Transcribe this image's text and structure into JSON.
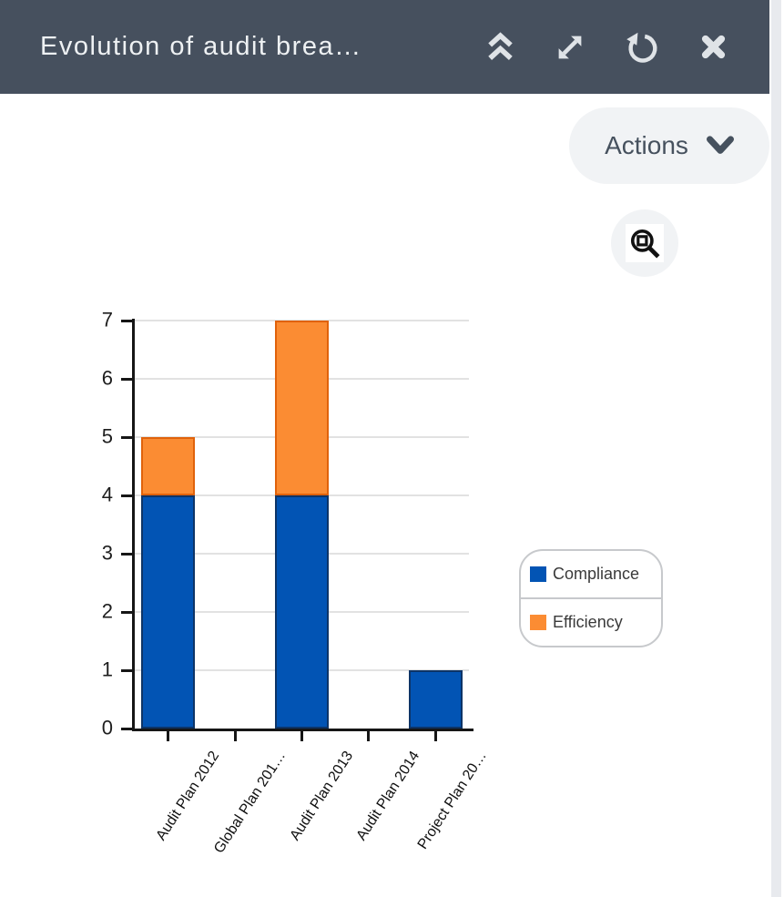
{
  "header": {
    "title": "Evolution of audit brea…",
    "icon_names": [
      "double-chevron-up",
      "expand-diagonal",
      "refresh",
      "close"
    ]
  },
  "toolbar": {
    "actions_label": "Actions",
    "actions_icon": "chevron-down",
    "zoom_icon": "magnifier-with-square"
  },
  "colors": {
    "header_bg": "#46505e",
    "header_icon": "#dfe3e7",
    "button_bg": "#f1f3f5",
    "button_text": "#46515e",
    "scrollbar_track": "#e8eaee",
    "axis": "#161616",
    "gridline": "#e2e2e2",
    "legend_border": "#c7c9cc"
  },
  "chart_data": {
    "type": "bar",
    "stacked": true,
    "title": "Evolution of audit brea…",
    "categories": [
      "Audit Plan 2012",
      "Global Plan 201…",
      "Audit Plan 2013",
      "Audit Plan 2014",
      "Project Plan 20…"
    ],
    "series": [
      {
        "name": "Compliance",
        "color": "#0254b4",
        "border_color": "#0d3467",
        "values": [
          4,
          0,
          4,
          0,
          1
        ]
      },
      {
        "name": "Efficiency",
        "color": "#fb8c33",
        "border_color": "#e0620b",
        "values": [
          1,
          0,
          3,
          0,
          0
        ]
      }
    ],
    "totals": [
      5,
      0,
      7,
      0,
      1
    ],
    "xlabel": "",
    "ylabel": "",
    "ylim": [
      0,
      7
    ],
    "yticks": [
      0,
      1,
      2,
      3,
      4,
      5,
      6,
      7
    ],
    "grid": true,
    "legend_position": "right-middle",
    "x_label_rotation_deg": -57
  }
}
